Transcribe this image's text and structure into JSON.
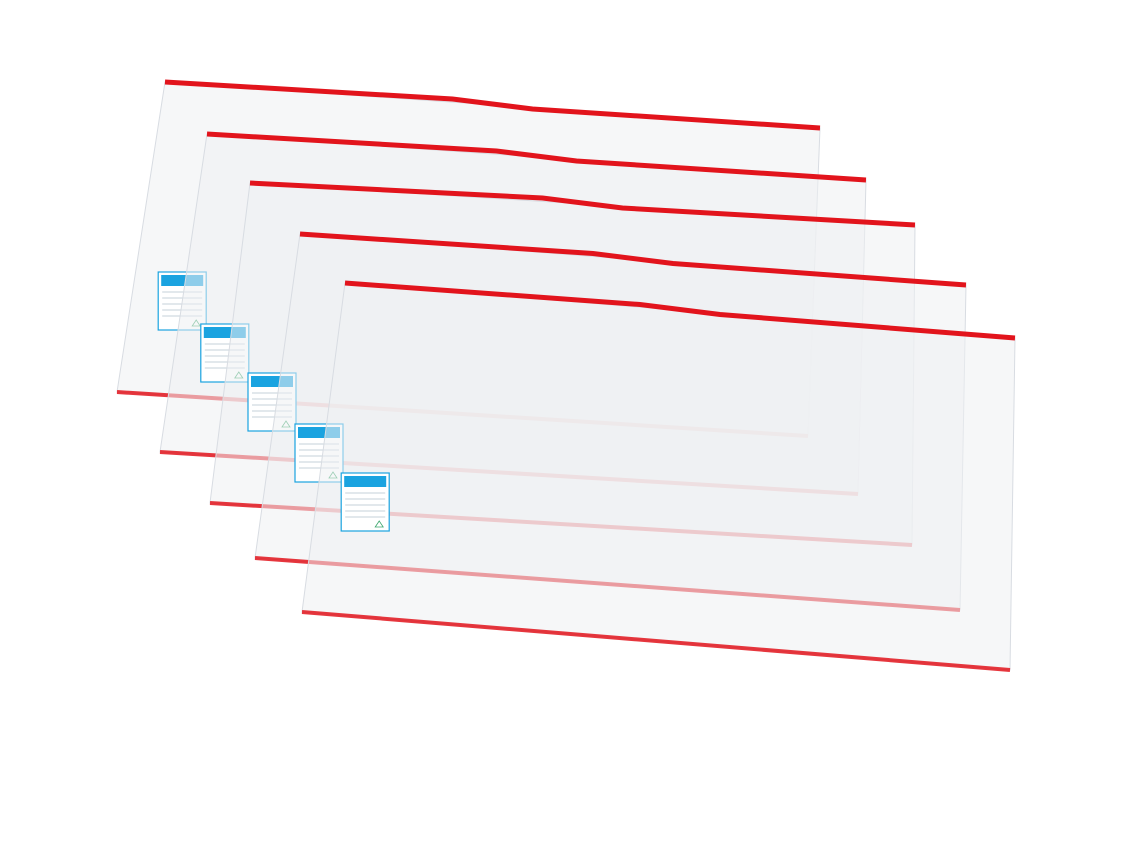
{
  "photo": {
    "subject": "book-covers",
    "count": 5,
    "colors": {
      "background": "#ffffff",
      "edge_tape": "#e2141c",
      "film": "#eef0f3",
      "label": "#1aa3e0"
    }
  }
}
